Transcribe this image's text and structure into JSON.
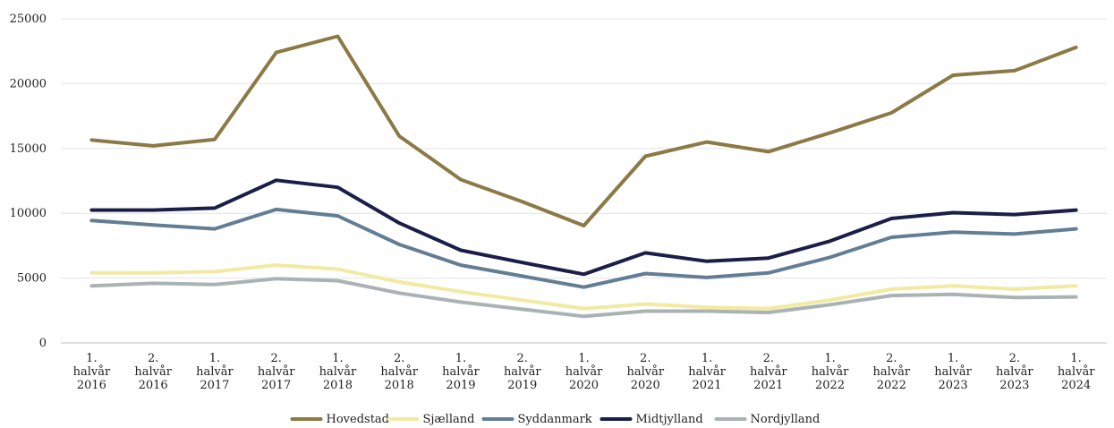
{
  "chart_data": {
    "type": "line",
    "title": "",
    "xlabel": "",
    "ylabel": "",
    "ylim": [
      0,
      25000
    ],
    "yticks": [
      "0",
      "5000",
      "10000",
      "15000",
      "20000",
      "25000"
    ],
    "grid": true,
    "legend_position": "bottom",
    "categories": [
      [
        "1.",
        "halvår",
        "2016"
      ],
      [
        "2.",
        "halvår",
        "2016"
      ],
      [
        "1.",
        "halvår",
        "2017"
      ],
      [
        "2.",
        "halvår",
        "2017"
      ],
      [
        "1.",
        "halvår",
        "2018"
      ],
      [
        "2.",
        "halvår",
        "2018"
      ],
      [
        "1.",
        "halvår",
        "2019"
      ],
      [
        "2.",
        "halvår",
        "2019"
      ],
      [
        "1.",
        "halvår",
        "2020"
      ],
      [
        "2.",
        "halvår",
        "2020"
      ],
      [
        "1.",
        "halvår",
        "2021"
      ],
      [
        "2.",
        "halvår",
        "2021"
      ],
      [
        "1.",
        "halvår",
        "2022"
      ],
      [
        "2.",
        "halvår",
        "2022"
      ],
      [
        "1.",
        "halvår",
        "2023"
      ],
      [
        "2.",
        "halvår",
        "2023"
      ],
      [
        "1.",
        "halvår",
        "2024"
      ]
    ],
    "series": [
      {
        "name": "Hovedstad",
        "color": "#8B7A45",
        "values": [
          15650,
          15200,
          15700,
          22400,
          23650,
          15950,
          12600,
          10900,
          9050,
          14400,
          15500,
          14750,
          16200,
          17750,
          20650,
          21000,
          22800
        ]
      },
      {
        "name": "Sjælland",
        "color": "#F2EAA0",
        "values": [
          5400,
          5400,
          5500,
          6000,
          5700,
          4700,
          3950,
          3300,
          2650,
          3000,
          2750,
          2650,
          3300,
          4150,
          4400,
          4150,
          4400
        ]
      },
      {
        "name": "Syddanmark",
        "color": "#637E94",
        "values": [
          9450,
          9100,
          8800,
          10300,
          9800,
          7600,
          6000,
          5150,
          4300,
          5350,
          5050,
          5400,
          6600,
          8150,
          8550,
          8400,
          8800
        ]
      },
      {
        "name": "Midtjylland",
        "color": "#1B1E48",
        "values": [
          10250,
          10250,
          10400,
          12550,
          12000,
          9250,
          7150,
          6200,
          5300,
          6950,
          6300,
          6550,
          7850,
          9600,
          10050,
          9900,
          10250
        ]
      },
      {
        "name": "Nordjylland",
        "color": "#A9B3B3",
        "values": [
          4400,
          4600,
          4500,
          4950,
          4800,
          3850,
          3150,
          2600,
          2050,
          2450,
          2450,
          2350,
          2950,
          3650,
          3750,
          3500,
          3550
        ]
      }
    ]
  }
}
